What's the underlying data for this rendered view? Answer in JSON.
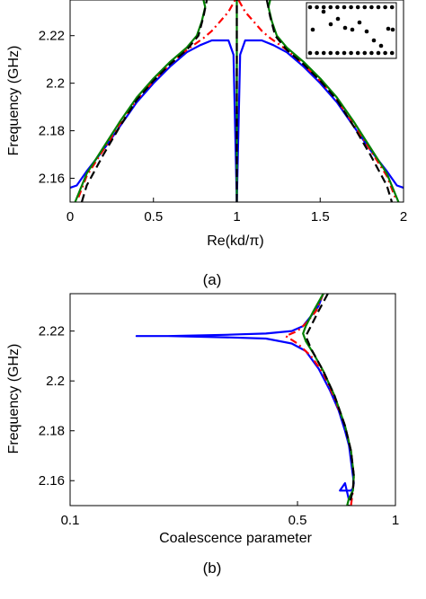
{
  "figure": {
    "panel_a_label": "(a)",
    "panel_b_label": "(b)"
  },
  "chart_data": [
    {
      "type": "line",
      "panel": "(a)",
      "xlabel": "Re(kd/π)",
      "ylabel": "Frequency (GHz)",
      "xlim": [
        0,
        2
      ],
      "ylim": [
        2.15,
        2.235
      ],
      "xticks": [
        0,
        0.5,
        1,
        1.5,
        2
      ],
      "xtick_labels": [
        "0",
        "0.5",
        "1",
        "1.5",
        "2"
      ],
      "yticks": [
        2.16,
        2.18,
        2.2,
        2.22
      ],
      "ytick_labels": [
        "2.16",
        "2.18",
        "2.2",
        "2.22"
      ],
      "grid": false,
      "inset": "lattice schematic (dots) in top-right corner",
      "series": [
        {
          "color": "#0000ff",
          "style": "solid",
          "x": [
            0,
            0.04,
            0.1,
            0.2,
            0.3,
            0.4,
            0.5,
            0.6,
            0.7,
            0.78,
            0.85,
            0.9,
            0.95,
            0.98,
            1.0
          ],
          "y": [
            2.156,
            2.157,
            2.163,
            2.172,
            2.182,
            2.192,
            2.2,
            2.207,
            2.213,
            2.216,
            2.218,
            2.218,
            2.218,
            2.212,
            2.15
          ]
        },
        {
          "color": "#0000ff",
          "style": "solid",
          "x": [
            1.0,
            1.02,
            1.05,
            1.1,
            1.15,
            1.22,
            1.3,
            1.4,
            1.5,
            1.6,
            1.7,
            1.8,
            1.9,
            1.96,
            2.0
          ],
          "y": [
            2.15,
            2.212,
            2.218,
            2.218,
            2.218,
            2.216,
            2.213,
            2.207,
            2.2,
            2.192,
            2.182,
            2.172,
            2.163,
            2.157,
            2.156
          ]
        },
        {
          "color": "#ff0000",
          "style": "dashdot",
          "x": [
            0.05,
            0.1,
            0.2,
            0.3,
            0.4,
            0.5,
            0.6,
            0.7,
            0.76,
            0.8,
            0.85,
            0.9,
            0.95,
            0.99
          ],
          "y": [
            2.152,
            2.161,
            2.172,
            2.183,
            2.193,
            2.201,
            2.208,
            2.214,
            2.217,
            2.219,
            2.222,
            2.226,
            2.23,
            2.235
          ]
        },
        {
          "color": "#ff0000",
          "style": "dashdot",
          "x": [
            1.01,
            1.05,
            1.1,
            1.15,
            1.2,
            1.24,
            1.3,
            1.4,
            1.5,
            1.6,
            1.7,
            1.8,
            1.9,
            1.95
          ],
          "y": [
            2.235,
            2.23,
            2.226,
            2.222,
            2.219,
            2.217,
            2.214,
            2.208,
            2.201,
            2.193,
            2.183,
            2.172,
            2.161,
            2.152
          ]
        },
        {
          "color": "#008000",
          "style": "solid",
          "x": [
            0.03,
            0.1,
            0.2,
            0.3,
            0.4,
            0.5,
            0.6,
            0.7,
            0.76,
            0.79,
            0.81,
            0.8
          ],
          "y": [
            2.15,
            2.162,
            2.173,
            2.184,
            2.194,
            2.202,
            2.209,
            2.215,
            2.22,
            2.226,
            2.232,
            2.235
          ]
        },
        {
          "color": "#008000",
          "style": "solid",
          "x": [
            1.2,
            1.19,
            1.21,
            1.24,
            1.3,
            1.4,
            1.5,
            1.6,
            1.7,
            1.8,
            1.9,
            1.97
          ],
          "y": [
            2.235,
            2.232,
            2.226,
            2.22,
            2.215,
            2.209,
            2.202,
            2.194,
            2.184,
            2.173,
            2.162,
            2.15
          ]
        },
        {
          "color": "#000000",
          "style": "dashed",
          "x": [
            0.07,
            0.1,
            0.2,
            0.3,
            0.4,
            0.5,
            0.6,
            0.7,
            0.77,
            0.8,
            0.82
          ],
          "y": [
            2.15,
            2.157,
            2.17,
            2.182,
            2.193,
            2.201,
            2.208,
            2.214,
            2.22,
            2.228,
            2.235
          ]
        },
        {
          "color": "#000000",
          "style": "dashed",
          "x": [
            1.18,
            1.2,
            1.23,
            1.3,
            1.4,
            1.5,
            1.6,
            1.7,
            1.8,
            1.9,
            1.93
          ],
          "y": [
            2.235,
            2.228,
            2.22,
            2.214,
            2.208,
            2.201,
            2.193,
            2.182,
            2.17,
            2.157,
            2.15
          ]
        },
        {
          "color": "#008000",
          "style": "solid",
          "x": [
            1.0,
            1.0
          ],
          "y": [
            2.15,
            2.235
          ]
        },
        {
          "color": "#000000",
          "style": "dashed",
          "x": [
            1.0,
            1.0
          ],
          "y": [
            2.15,
            2.235
          ]
        }
      ]
    },
    {
      "type": "line",
      "panel": "(b)",
      "xlabel": "Coalescence parameter",
      "ylabel": "Frequency (GHz)",
      "xscale": "log",
      "xlim": [
        0.1,
        1
      ],
      "ylim": [
        2.15,
        2.235
      ],
      "xticks": [
        0.1,
        0.5,
        1
      ],
      "xtick_labels": [
        "0.1",
        "0.5",
        "1"
      ],
      "yticks": [
        2.16,
        2.18,
        2.2,
        2.22
      ],
      "ytick_labels": [
        "2.16",
        "2.18",
        "2.2",
        "2.22"
      ],
      "grid": false,
      "series": [
        {
          "color": "#0000ff",
          "style": "solid",
          "x": [
            0.6,
            0.58,
            0.55,
            0.52,
            0.48,
            0.4,
            0.3,
            0.2,
            0.16,
            0.2,
            0.3,
            0.4,
            0.48,
            0.53,
            0.58,
            0.63,
            0.67,
            0.7,
            0.72,
            0.73,
            0.74,
            0.745,
            0.74,
            0.73,
            0.72,
            0.705,
            0.69,
            0.675,
            0.7,
            0.72
          ],
          "y": [
            2.235,
            2.23,
            2.226,
            2.222,
            2.22,
            2.219,
            2.2185,
            2.218,
            2.218,
            2.218,
            2.2175,
            2.217,
            2.215,
            2.212,
            2.205,
            2.196,
            2.188,
            2.18,
            2.174,
            2.168,
            2.162,
            2.159,
            2.157,
            2.156,
            2.156,
            2.156,
            2.156,
            2.156,
            2.159,
            2.152
          ]
        },
        {
          "color": "#ff0000",
          "style": "dashdot",
          "x": [
            0.6,
            0.57,
            0.53,
            0.5,
            0.46,
            0.5,
            0.55,
            0.6,
            0.65,
            0.7,
            0.73,
            0.745,
            0.74,
            0.73
          ],
          "y": [
            2.235,
            2.228,
            2.223,
            2.22,
            2.218,
            2.215,
            2.21,
            2.203,
            2.193,
            2.182,
            2.172,
            2.162,
            2.156,
            2.15
          ]
        },
        {
          "color": "#008000",
          "style": "solid",
          "x": [
            0.6,
            0.56,
            0.53,
            0.52,
            0.53,
            0.56,
            0.6,
            0.65,
            0.7,
            0.73,
            0.745,
            0.74,
            0.72,
            0.71
          ],
          "y": [
            2.235,
            2.228,
            2.222,
            2.219,
            2.216,
            2.211,
            2.204,
            2.194,
            2.182,
            2.172,
            2.162,
            2.156,
            2.153,
            2.15
          ]
        },
        {
          "color": "#000000",
          "style": "dashed",
          "x": [
            0.62,
            0.58,
            0.55,
            0.53,
            0.55,
            0.6,
            0.65,
            0.7,
            0.73,
            0.745,
            0.74,
            0.72
          ],
          "y": [
            2.235,
            2.228,
            2.222,
            2.218,
            2.213,
            2.204,
            2.194,
            2.182,
            2.172,
            2.162,
            2.156,
            2.15
          ]
        }
      ]
    }
  ]
}
